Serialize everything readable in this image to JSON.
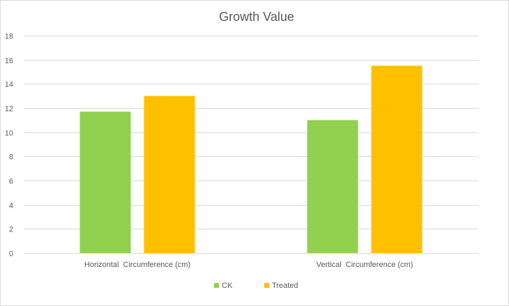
{
  "chart_data": {
    "type": "bar",
    "title": "Growth Value",
    "xlabel": "",
    "ylabel": "",
    "categories": [
      "Horizontal  Circumference (cm)",
      "Vertical  Circumference (cm)"
    ],
    "series": [
      {
        "name": "CK",
        "color": "#92d050",
        "values": [
          11.7,
          11.0
        ]
      },
      {
        "name": "Treated",
        "color": "#ffc000",
        "values": [
          13.0,
          15.5
        ]
      }
    ],
    "ylim": [
      0,
      18
    ],
    "yticks": [
      0,
      2,
      4,
      6,
      8,
      10,
      12,
      14,
      16,
      18
    ],
    "grid": true,
    "legend_position": "bottom"
  }
}
